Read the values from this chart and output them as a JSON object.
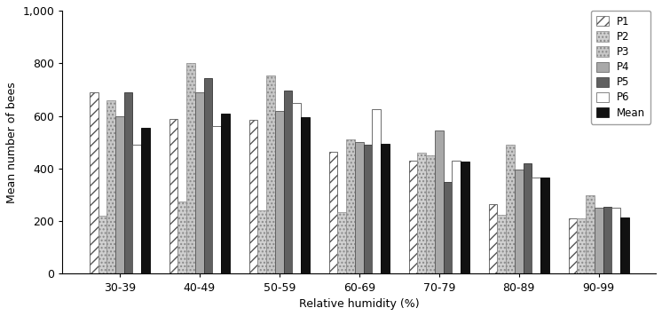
{
  "categories": [
    "30-39",
    "40-49",
    "50-59",
    "60-69",
    "70-79",
    "80-89",
    "90-99"
  ],
  "series": {
    "P1": [
      690,
      590,
      585,
      465,
      430,
      265,
      210
    ],
    "P2": [
      220,
      275,
      240,
      235,
      460,
      225,
      210
    ],
    "P3": [
      660,
      800,
      755,
      510,
      450,
      490,
      300
    ],
    "P4": [
      600,
      690,
      620,
      500,
      545,
      395,
      250
    ],
    "P5": [
      690,
      745,
      695,
      490,
      350,
      420,
      255
    ],
    "P6": [
      490,
      560,
      650,
      625,
      430,
      365,
      250
    ],
    "Mean": [
      555,
      610,
      595,
      495,
      425,
      365,
      215
    ]
  },
  "series_names": [
    "P1",
    "P2",
    "P3",
    "P4",
    "P5",
    "P6",
    "Mean"
  ],
  "xlabel": "Relative humidity (%)",
  "ylabel": "Mean number of bees",
  "ylim": [
    0,
    1000
  ],
  "yticks": [
    0,
    200,
    400,
    600,
    800,
    1000
  ],
  "ytick_labels": [
    "0",
    "200",
    "400",
    "600",
    "800",
    "1,000"
  ],
  "bar_width": 0.108,
  "figsize": [
    7.46,
    3.56
  ],
  "dpi": 100
}
